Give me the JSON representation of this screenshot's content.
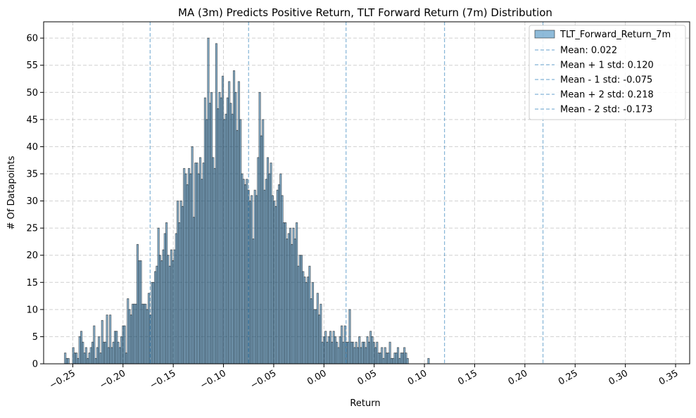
{
  "chart_data": {
    "type": "bar",
    "title": "MA (3m) Predicts Positive Return, TLT Forward Return (7m) Distribution",
    "xlabel": "Return",
    "ylabel": "# Of Datapoints",
    "xlim": [
      -0.279,
      0.364
    ],
    "ylim": [
      0,
      63
    ],
    "grid": true,
    "legend_position": "top-right",
    "bar_color": "#1f77b4",
    "bar_alpha": 0.5,
    "x_ticks": [
      "−0.25",
      "−0.20",
      "−0.15",
      "−0.10",
      "−0.05",
      "0.00",
      "0.05",
      "0.10",
      "0.15",
      "0.20",
      "0.25",
      "0.30",
      "0.35"
    ],
    "x_tick_values": [
      -0.25,
      -0.2,
      -0.15,
      -0.1,
      -0.05,
      0.0,
      0.05,
      0.1,
      0.15,
      0.2,
      0.25,
      0.3,
      0.35
    ],
    "y_ticks": [
      "0",
      "5",
      "10",
      "15",
      "20",
      "25",
      "30",
      "35",
      "40",
      "45",
      "50",
      "55",
      "60"
    ],
    "y_tick_values": [
      0,
      5,
      10,
      15,
      20,
      25,
      30,
      35,
      40,
      45,
      50,
      55,
      60
    ],
    "series": [
      {
        "name": "TLT_Forward_Return_7m",
        "bin_start": -0.2583,
        "bin_width": 0.0016,
        "values": [
          2,
          1,
          1,
          0,
          0,
          3,
          2,
          2,
          1,
          5,
          6,
          4,
          2,
          3,
          1,
          2,
          3,
          4,
          7,
          1,
          3,
          5,
          2,
          8,
          4,
          4,
          9,
          3,
          9,
          3,
          4,
          6,
          6,
          4,
          3,
          5,
          7,
          7,
          2,
          12,
          10,
          9,
          11,
          11,
          11,
          22,
          19,
          19,
          11,
          11,
          11,
          10,
          13,
          9,
          15,
          15,
          17,
          18,
          25,
          20,
          19,
          21,
          24,
          26,
          20,
          18,
          21,
          19,
          21,
          24,
          30,
          26,
          30,
          29,
          36,
          35,
          33,
          36,
          35,
          40,
          27,
          37,
          37,
          35,
          38,
          34,
          37,
          49,
          45,
          60,
          48,
          50,
          38,
          36,
          59,
          47,
          50,
          49,
          53,
          45,
          46,
          49,
          52,
          48,
          46,
          54,
          50,
          43,
          52,
          45,
          35,
          34,
          33,
          34,
          32,
          30,
          31,
          23,
          32,
          31,
          38,
          50,
          42,
          45,
          32,
          34,
          38,
          35,
          37,
          31,
          30,
          29,
          32,
          33,
          35,
          31,
          26,
          26,
          23,
          24,
          25,
          22,
          25,
          23,
          26,
          18,
          20,
          20,
          17,
          16,
          15,
          16,
          18,
          12,
          15,
          10,
          10,
          13,
          9,
          11,
          4,
          5,
          6,
          4,
          5,
          6,
          4,
          6,
          5,
          4,
          3,
          5,
          7,
          4,
          7,
          4,
          4,
          10,
          4,
          4,
          3,
          4,
          3,
          5,
          3,
          4,
          4,
          3,
          5,
          4,
          6,
          5,
          4,
          3,
          4,
          2,
          2,
          3,
          1,
          3,
          2,
          2,
          4,
          1,
          1,
          2,
          2,
          3,
          1,
          2,
          2,
          3,
          2,
          1,
          0,
          0,
          0,
          0,
          0,
          0,
          0,
          0,
          0,
          0,
          0,
          0,
          1
        ]
      }
    ],
    "reference_lines": [
      {
        "label": "Mean: 0.022",
        "value": 0.022
      },
      {
        "label": "Mean + 1 std: 0.120",
        "value": 0.12
      },
      {
        "label": "Mean - 1 std: -0.075",
        "value": -0.075
      },
      {
        "label": "Mean + 2 std: 0.218",
        "value": 0.218
      },
      {
        "label": "Mean - 2 std: -0.173",
        "value": -0.173
      }
    ],
    "reference_line_color": "#1f77b4"
  }
}
